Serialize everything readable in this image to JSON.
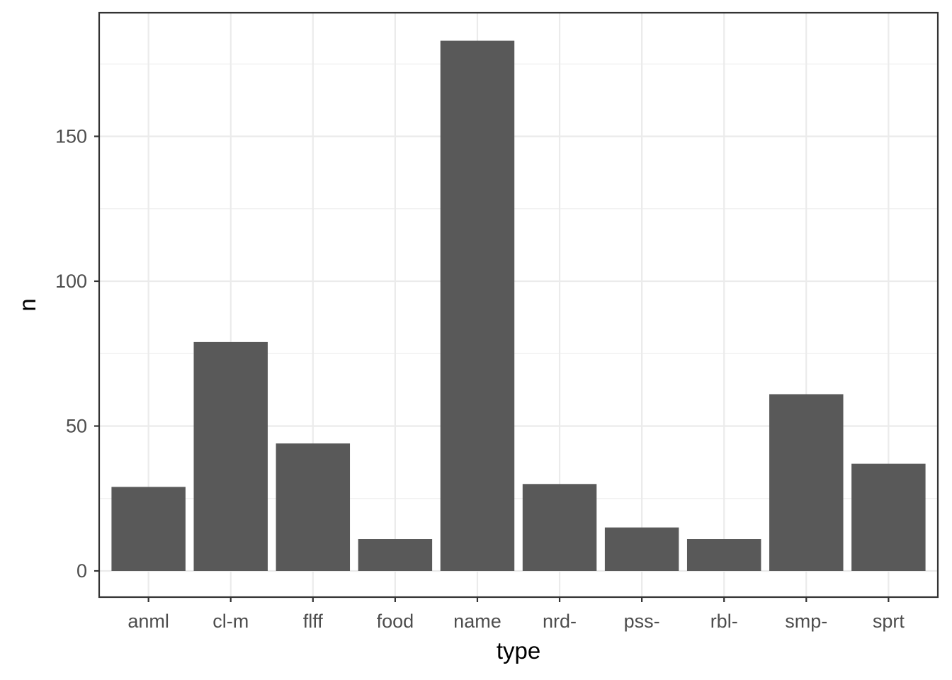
{
  "chart_data": {
    "type": "bar",
    "categories": [
      "anml",
      "cl-m",
      "flff",
      "food",
      "name",
      "nrd-",
      "pss-",
      "rbl-",
      "smp-",
      "sprt"
    ],
    "values": [
      29,
      79,
      44,
      11,
      183,
      30,
      15,
      11,
      61,
      37
    ],
    "xlabel": "type",
    "ylabel": "n",
    "ylim": [
      0,
      192
    ],
    "yticks": [
      0,
      50,
      100,
      150
    ],
    "grid": true,
    "bar_color": "#595959",
    "theme": "bw"
  }
}
